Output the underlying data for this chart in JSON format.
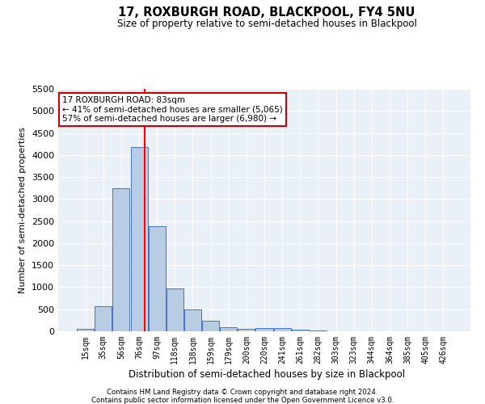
{
  "title": "17, ROXBURGH ROAD, BLACKPOOL, FY4 5NU",
  "subtitle": "Size of property relative to semi-detached houses in Blackpool",
  "xlabel": "Distribution of semi-detached houses by size in Blackpool",
  "ylabel": "Number of semi-detached properties",
  "bin_labels": [
    "15sqm",
    "35sqm",
    "56sqm",
    "76sqm",
    "97sqm",
    "118sqm",
    "138sqm",
    "159sqm",
    "179sqm",
    "200sqm",
    "220sqm",
    "241sqm",
    "261sqm",
    "282sqm",
    "303sqm",
    "323sqm",
    "344sqm",
    "364sqm",
    "385sqm",
    "405sqm",
    "426sqm"
  ],
  "bar_heights": [
    50,
    560,
    3250,
    4180,
    2380,
    980,
    500,
    230,
    100,
    55,
    65,
    70,
    40,
    15,
    5,
    0,
    5,
    0,
    0,
    0,
    0
  ],
  "bar_color": "#b8cce4",
  "bar_edge_color": "#4472c4",
  "bg_color": "#eaf0f8",
  "grid_color": "#ffffff",
  "property_bin_index": 3,
  "annotation_line1": "17 ROXBURGH ROAD: 83sqm",
  "annotation_line2": "← 41% of semi-detached houses are smaller (5,065)",
  "annotation_line3": "57% of semi-detached houses are larger (6,980) →",
  "annotation_box_color": "#ffffff",
  "annotation_box_edge": "#cc0000",
  "ylim": [
    0,
    5500
  ],
  "yticks": [
    0,
    500,
    1000,
    1500,
    2000,
    2500,
    3000,
    3500,
    4000,
    4500,
    5000,
    5500
  ],
  "footer1": "Contains HM Land Registry data © Crown copyright and database right 2024.",
  "footer2": "Contains public sector information licensed under the Open Government Licence v3.0."
}
